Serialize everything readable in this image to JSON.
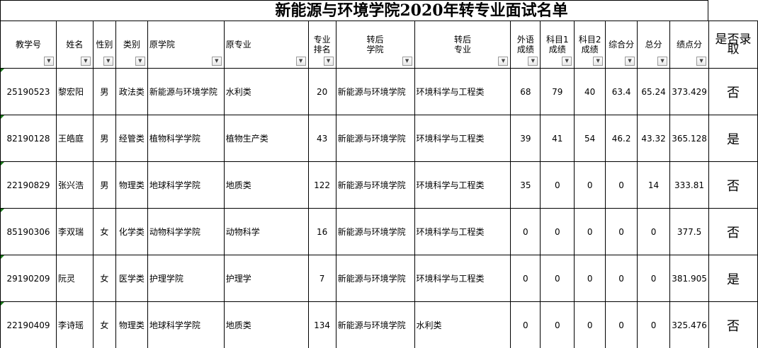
{
  "title": "新能源与环境学院2020年转专业面试名单",
  "headers": [
    "教学号",
    "姓名",
    "性别",
    "类别",
    "原学院",
    "原专业",
    "专业排名",
    "转后学院",
    "转后专业",
    "外语成绩",
    "科目1成绩",
    "科目2成绩",
    "综合分",
    "总分",
    "绩点分",
    "是否录取"
  ],
  "filter_icons": [
    "dropdown-arrow-icon",
    "dropdown-arrow-icon",
    "dropdown-arrow-icon",
    "dropdown-arrow-icon",
    "dropdown-arrow-icon",
    "dropdown-arrow-icon",
    "dropdown-arrow-icon",
    "filter-active-icon",
    "dropdown-arrow-icon",
    "dropdown-arrow-icon",
    "dropdown-arrow-icon",
    "dropdown-arrow-icon",
    "dropdown-arrow-icon",
    "dropdown-arrow-icon",
    "dropdown-arrow-icon"
  ],
  "rows": [
    [
      "25190523",
      "黎宏阳",
      "男",
      "政法类",
      "新能源与环境学院",
      "水利类",
      "20",
      "新能源与环境学院",
      "环境科学与工程类",
      "68",
      "79",
      "40",
      "63.4",
      "65.24",
      "373.429",
      "否"
    ],
    [
      "82190128",
      "王皓庭",
      "男",
      "经管类",
      "植物科学学院",
      "植物生产类",
      "43",
      "新能源与环境学院",
      "环境科学与工程类",
      "39",
      "41",
      "54",
      "46.2",
      "43.32",
      "365.128",
      "是"
    ],
    [
      "22190829",
      "张兴浩",
      "男",
      "物理类",
      "地球科学学院",
      "地质类",
      "122",
      "新能源与环境学院",
      "环境科学与工程类",
      "35",
      "0",
      "0",
      "0",
      "14",
      "333.81",
      "否"
    ],
    [
      "85190306",
      "李双瑞",
      "女",
      "化学类",
      "动物科学学院",
      "动物科学",
      "16",
      "新能源与环境学院",
      "环境科学与工程类",
      "0",
      "0",
      "0",
      "0",
      "0",
      "377.5",
      "否"
    ],
    [
      "29190209",
      "阮灵",
      "女",
      "医学类",
      "护理学院",
      "护理学",
      "7",
      "新能源与环境学院",
      "环境科学与工程类",
      "0",
      "0",
      "0",
      "0",
      "0",
      "381.905",
      "是"
    ],
    [
      "22190409",
      "李诗瑶",
      "女",
      "物理类",
      "地球科学学院",
      "地质类",
      "134",
      "新能源与环境学院",
      "水利类",
      "0",
      "0",
      "0",
      "0",
      "0",
      "325.476",
      "否"
    ]
  ]
}
